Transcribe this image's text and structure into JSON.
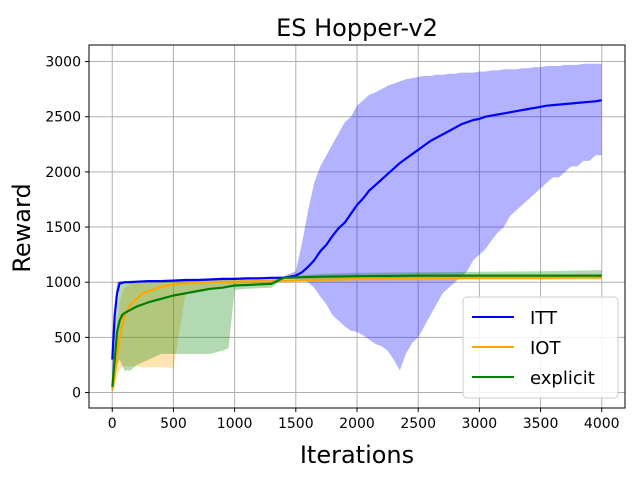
{
  "chart_data": {
    "type": "line",
    "title": "ES Hopper-v2",
    "xlabel": "Iterations",
    "ylabel": "Reward",
    "xlim": [
      -190,
      4190
    ],
    "ylim": [
      -140,
      3150
    ],
    "xticks": [
      0,
      500,
      1000,
      1500,
      2000,
      2500,
      3000,
      3500,
      4000
    ],
    "yticks": [
      0,
      500,
      1000,
      1500,
      2000,
      2500,
      3000
    ],
    "grid": true,
    "legend_position": "lower-right",
    "series": [
      {
        "name": "ITT",
        "color": "#0000ff",
        "x": [
          0,
          20,
          40,
          60,
          80,
          100,
          150,
          200,
          300,
          400,
          500,
          600,
          700,
          800,
          900,
          1000,
          1100,
          1200,
          1300,
          1400,
          1500,
          1550,
          1600,
          1650,
          1700,
          1750,
          1800,
          1850,
          1900,
          1950,
          2000,
          2050,
          2100,
          2150,
          2200,
          2250,
          2300,
          2350,
          2400,
          2450,
          2500,
          2550,
          2600,
          2650,
          2700,
          2750,
          2800,
          2850,
          2900,
          2950,
          3000,
          3050,
          3100,
          3150,
          3200,
          3250,
          3300,
          3350,
          3400,
          3450,
          3500,
          3550,
          3600,
          3650,
          3700,
          3750,
          3800,
          3850,
          3900,
          3950,
          4000
        ],
        "y": [
          300,
          700,
          900,
          990,
          995,
          1000,
          1000,
          1005,
          1010,
          1010,
          1015,
          1020,
          1020,
          1025,
          1030,
          1030,
          1035,
          1035,
          1040,
          1040,
          1060,
          1090,
          1140,
          1200,
          1280,
          1340,
          1420,
          1490,
          1540,
          1620,
          1700,
          1760,
          1830,
          1880,
          1930,
          1980,
          2030,
          2080,
          2120,
          2160,
          2200,
          2240,
          2280,
          2310,
          2340,
          2370,
          2400,
          2430,
          2450,
          2470,
          2480,
          2500,
          2510,
          2520,
          2530,
          2540,
          2550,
          2560,
          2570,
          2580,
          2590,
          2600,
          2605,
          2610,
          2615,
          2620,
          2625,
          2630,
          2635,
          2640,
          2650
        ],
        "band": {
          "upper": [
            320,
            800,
            1000,
            1010,
            1010,
            1010,
            1015,
            1015,
            1020,
            1020,
            1025,
            1030,
            1030,
            1035,
            1040,
            1040,
            1045,
            1045,
            1050,
            1055,
            1100,
            1350,
            1650,
            1900,
            2050,
            2150,
            2250,
            2350,
            2450,
            2500,
            2600,
            2650,
            2700,
            2720,
            2750,
            2780,
            2800,
            2820,
            2840,
            2850,
            2860,
            2870,
            2870,
            2880,
            2880,
            2890,
            2890,
            2900,
            2900,
            2900,
            2910,
            2910,
            2920,
            2920,
            2930,
            2930,
            2930,
            2940,
            2940,
            2950,
            2950,
            2960,
            2960,
            2960,
            2970,
            2970,
            2970,
            2980,
            2980,
            2980,
            2980
          ],
          "lower": [
            100,
            500,
            850,
            970,
            980,
            990,
            990,
            995,
            1000,
            1000,
            1005,
            1005,
            1010,
            1015,
            1015,
            1020,
            1020,
            1025,
            1025,
            1030,
            1030,
            1020,
            1000,
            950,
            870,
            800,
            700,
            650,
            600,
            560,
            550,
            520,
            480,
            440,
            420,
            380,
            300,
            200,
            350,
            450,
            500,
            600,
            700,
            800,
            900,
            950,
            1000,
            1050,
            1100,
            1200,
            1250,
            1300,
            1380,
            1450,
            1500,
            1600,
            1650,
            1700,
            1750,
            1800,
            1850,
            1900,
            1950,
            1950,
            2000,
            2050,
            2050,
            2100,
            2100,
            2150,
            2150
          ]
        }
      },
      {
        "name": "IOT",
        "color": "#ffa500",
        "x": [
          0,
          20,
          40,
          60,
          80,
          100,
          150,
          200,
          250,
          300,
          350,
          400,
          450,
          500,
          600,
          800,
          1000,
          1200,
          1400,
          1600,
          1800,
          2000,
          2500,
          3000,
          3500,
          4000
        ],
        "y": [
          20,
          150,
          350,
          500,
          600,
          700,
          800,
          850,
          900,
          920,
          940,
          960,
          970,
          980,
          990,
          1000,
          1005,
          1010,
          1015,
          1020,
          1025,
          1030,
          1035,
          1040,
          1040,
          1045
        ],
        "band": {
          "upper": [
            40,
            250,
            600,
            800,
            900,
            950,
            980,
            1000,
            1010,
            1015,
            1015,
            1020,
            1020,
            1025,
            1025,
            1030,
            1030,
            1035,
            1035,
            1040,
            1040,
            1045,
            1050,
            1055,
            1060,
            1060
          ],
          "lower": [
            10,
            60,
            150,
            200,
            230,
            240,
            240,
            240,
            230,
            230,
            230,
            230,
            230,
            220,
            900,
            950,
            975,
            990,
            1000,
            1005,
            1010,
            1010,
            1015,
            1020,
            1020,
            1025
          ]
        }
      },
      {
        "name": "explicit",
        "color": "#008000",
        "x": [
          0,
          20,
          40,
          60,
          80,
          100,
          150,
          200,
          300,
          400,
          500,
          600,
          700,
          800,
          900,
          950,
          1000,
          1100,
          1200,
          1300,
          1400,
          1500,
          1700,
          2000,
          2500,
          3000,
          3500,
          4000
        ],
        "y": [
          50,
          300,
          550,
          650,
          700,
          720,
          750,
          780,
          820,
          850,
          880,
          900,
          920,
          940,
          950,
          960,
          970,
          975,
          980,
          985,
          1040,
          1045,
          1050,
          1055,
          1060,
          1060,
          1060,
          1060
        ],
        "band": {
          "upper": [
            100,
            550,
            800,
            950,
            1000,
            1000,
            1000,
            1000,
            1000,
            1010,
            1015,
            1015,
            1020,
            1020,
            1020,
            1025,
            1020,
            1020,
            1020,
            1020,
            1050,
            1060,
            1075,
            1085,
            1090,
            1095,
            1100,
            1110
          ],
          "lower": [
            0,
            100,
            250,
            300,
            250,
            200,
            200,
            250,
            300,
            350,
            350,
            350,
            350,
            350,
            380,
            400,
            930,
            940,
            945,
            950,
            1030,
            1030,
            1035,
            1040,
            1040,
            1040,
            1035,
            1030
          ]
        }
      }
    ]
  }
}
